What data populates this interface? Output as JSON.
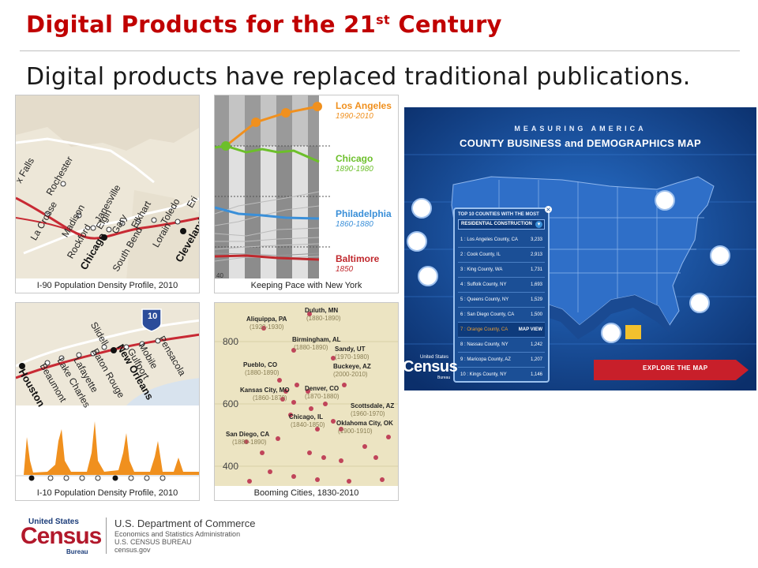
{
  "slide": {
    "title_main": "Digital Products for the 21",
    "title_sup": "st",
    "title_end": " Century",
    "subtitle": "Digital products have replaced traditional publications."
  },
  "panels": {
    "i90": {
      "caption": "I-90 Population Density Profile, 2010",
      "cities": [
        "x Falls",
        "Rochester",
        "La Crosse",
        "Madison",
        "Janesville",
        "Rockford",
        "Elgin",
        "Gary",
        "Elkhart",
        "Toledo",
        "Chicago",
        "South Bend",
        "Lorain",
        "Cleveland",
        "Eri"
      ]
    },
    "pace": {
      "caption": "Keeping Pace with New York",
      "cities": [
        {
          "name": "Los Angeles",
          "years": "1990-2010",
          "color": "#f0901e"
        },
        {
          "name": "Chicago",
          "years": "1890-1980",
          "color": "#6cbf2a"
        },
        {
          "name": "Philadelphia",
          "years": "1860-1880",
          "color": "#3a8fd8"
        },
        {
          "name": "Baltimore",
          "years": "1850",
          "color": "#c0282d"
        }
      ],
      "axis_fragment": "40"
    },
    "i10": {
      "caption": "I-10 Population Density Profile, 2010",
      "shield": "10",
      "cities": [
        "Houston",
        "Beaumont",
        "Lake Charles",
        "Lafayette",
        "Baton Rouge",
        "Slidell",
        "New Orleans",
        "Gulfport",
        "Mobile",
        "Pensacola"
      ]
    },
    "booming": {
      "caption": "Booming Cities, 1830-2010",
      "y_ticks": [
        "800",
        "600",
        "400"
      ],
      "annotations": [
        {
          "name": "Duluth, MN",
          "years": "(1880-1890)"
        },
        {
          "name": "Aliquippa, PA",
          "years": "(1920-1930)"
        },
        {
          "name": "Birmingham, AL",
          "years": "(1880-1890)"
        },
        {
          "name": "Sandy, UT",
          "years": "(1970-1980)"
        },
        {
          "name": "Pueblo, CO",
          "years": "(1880-1890)"
        },
        {
          "name": "Buckeye, AZ",
          "years": "(2000-2010)"
        },
        {
          "name": "Kansas City, MO",
          "years": "(1860-1870)"
        },
        {
          "name": "Denver, CO",
          "years": "(1870-1880)"
        },
        {
          "name": "Scottsdale, AZ",
          "years": "(1960-1970)"
        },
        {
          "name": "Chicago, IL",
          "years": "(1840-1850)"
        },
        {
          "name": "Oklahoma City, OK",
          "years": "(1900-1910)"
        },
        {
          "name": "San Diego, CA",
          "years": "(1880-1890)"
        }
      ]
    },
    "cbd": {
      "heading_small": "MEASURING AMERICA",
      "heading_big": "COUNTY BUSINESS and DEMOGRAPHICS MAP",
      "popup_title": "TOP 10 COUNTIES WITH THE MOST",
      "popup_dropdown": "RESIDENTIAL CONSTRUCTION",
      "rows": [
        {
          "label": "1 : Los Angeles County, CA",
          "value": "3,233"
        },
        {
          "label": "2 : Cook County, IL",
          "value": "2,913"
        },
        {
          "label": "3 : King County, WA",
          "value": "1,731"
        },
        {
          "label": "4 : Suffolk County, NY",
          "value": "1,693"
        },
        {
          "label": "5 : Queens County, NY",
          "value": "1,529"
        },
        {
          "label": "6 : San Diego County, CA",
          "value": "1,500"
        },
        {
          "label": "7 : Orange County, CA",
          "value": "MAP VIEW"
        },
        {
          "label": "8 : Nassau County, NY",
          "value": "1,242"
        },
        {
          "label": "9 : Maricopa County, AZ",
          "value": "1,207"
        },
        {
          "label": "10 : Kings County, NY",
          "value": "1,146"
        }
      ],
      "logo_small": "United States",
      "logo_big": "Census",
      "logo_bureau": "Bureau",
      "cta": "EXPLORE THE MAP"
    }
  },
  "footer": {
    "logo_small": "United States",
    "logo_big": "Census",
    "logo_bureau": "Bureau",
    "dept_line1": "U.S. Department of Commerce",
    "dept_line2": "Economics and Statistics Administration",
    "dept_line3": "U.S. CENSUS BUREAU",
    "dept_line4": "census.gov"
  },
  "colors": {
    "title_red": "#c00000",
    "map_blue": "#1f5fb8",
    "census_red": "#b2182b",
    "census_blue": "#1b3c79"
  }
}
